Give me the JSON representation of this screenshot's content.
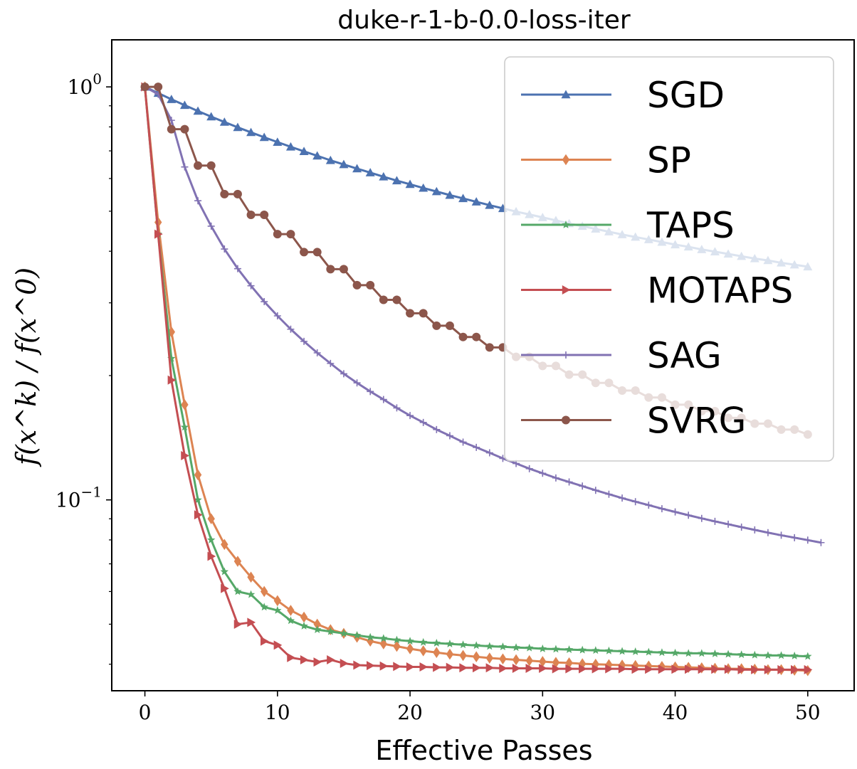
{
  "chart_data": {
    "type": "line",
    "title": "duke-r-1-b-0.0-loss-iter",
    "xlabel": "Effective Passes",
    "ylabel": "f(x^k) / f(x^0)",
    "xlim": [
      -2.5,
      53.5
    ],
    "ylim": [
      0.0345,
      1.3
    ],
    "yscale": "log",
    "grid": false,
    "legend_position": "top-right",
    "x_ticks": [
      0,
      10,
      20,
      30,
      40,
      50
    ],
    "x_tick_labels": [
      "0",
      "10",
      "20",
      "30",
      "40",
      "50"
    ],
    "y_ticks": [
      1.0,
      0.1
    ],
    "y_tick_labels": [
      "10^0",
      "10^-1"
    ],
    "series": [
      {
        "name": "SGD",
        "color": "#4c72b0",
        "marker": "triangle-up",
        "x": [
          0,
          1,
          2,
          3,
          4,
          5,
          6,
          7,
          8,
          9,
          10,
          11,
          12,
          13,
          14,
          15,
          16,
          17,
          18,
          19,
          20,
          21,
          22,
          23,
          24,
          25,
          26,
          27,
          28,
          29,
          30,
          31,
          32,
          33,
          34,
          35,
          36,
          37,
          38,
          39,
          40,
          41,
          42,
          43,
          44,
          45,
          46,
          47,
          48,
          49,
          50
        ],
        "y": [
          1.0,
          0.966,
          0.933,
          0.903,
          0.874,
          0.847,
          0.822,
          0.798,
          0.776,
          0.755,
          0.735,
          0.716,
          0.698,
          0.681,
          0.664,
          0.649,
          0.634,
          0.62,
          0.606,
          0.593,
          0.581,
          0.569,
          0.558,
          0.547,
          0.537,
          0.527,
          0.517,
          0.508,
          0.499,
          0.491,
          0.483,
          0.475,
          0.467,
          0.46,
          0.453,
          0.446,
          0.439,
          0.433,
          0.427,
          0.421,
          0.415,
          0.41,
          0.404,
          0.399,
          0.394,
          0.389,
          0.384,
          0.38,
          0.375,
          0.371,
          0.367
        ]
      },
      {
        "name": "SP",
        "color": "#dd8452",
        "marker": "diamond",
        "x": [
          0,
          1,
          2,
          3,
          4,
          5,
          6,
          7,
          8,
          9,
          10,
          11,
          12,
          13,
          14,
          15,
          16,
          17,
          18,
          19,
          20,
          21,
          22,
          23,
          24,
          25,
          26,
          27,
          28,
          29,
          30,
          31,
          32,
          33,
          34,
          35,
          36,
          37,
          38,
          39,
          40,
          41,
          42,
          43,
          44,
          45,
          46,
          47,
          48,
          49,
          50
        ],
        "y": [
          1.0,
          0.47,
          0.255,
          0.17,
          0.115,
          0.09,
          0.078,
          0.071,
          0.065,
          0.06,
          0.057,
          0.054,
          0.052,
          0.05,
          0.0485,
          0.0475,
          0.0465,
          0.0455,
          0.0448,
          0.0442,
          0.0436,
          0.0431,
          0.0427,
          0.0423,
          0.042,
          0.0417,
          0.0414,
          0.0412,
          0.041,
          0.0408,
          0.0406,
          0.0404,
          0.0403,
          0.0401,
          0.04,
          0.0399,
          0.0398,
          0.0397,
          0.0396,
          0.0395,
          0.0394,
          0.0393,
          0.0392,
          0.0391,
          0.039,
          0.039,
          0.0389,
          0.0388,
          0.0388,
          0.0387,
          0.0386
        ]
      },
      {
        "name": "TAPS",
        "color": "#55a868",
        "marker": "star",
        "x": [
          0,
          1,
          2,
          3,
          4,
          5,
          6,
          7,
          8,
          9,
          10,
          11,
          12,
          13,
          14,
          15,
          16,
          17,
          18,
          19,
          20,
          21,
          22,
          23,
          24,
          25,
          26,
          27,
          28,
          29,
          30,
          31,
          32,
          33,
          34,
          35,
          36,
          37,
          38,
          39,
          40,
          41,
          42,
          43,
          44,
          45,
          46,
          47,
          48,
          49,
          50
        ],
        "y": [
          1.0,
          0.44,
          0.22,
          0.15,
          0.1,
          0.08,
          0.067,
          0.06,
          0.059,
          0.055,
          0.054,
          0.051,
          0.0495,
          0.0485,
          0.048,
          0.0475,
          0.047,
          0.0465,
          0.0462,
          0.0458,
          0.0455,
          0.0452,
          0.045,
          0.0448,
          0.0446,
          0.0444,
          0.0442,
          0.0441,
          0.0439,
          0.0438,
          0.0436,
          0.0435,
          0.0434,
          0.0433,
          0.0432,
          0.0431,
          0.043,
          0.0429,
          0.0428,
          0.0427,
          0.0426,
          0.0425,
          0.0425,
          0.0424,
          0.0423,
          0.0422,
          0.0421,
          0.042,
          0.042,
          0.0419,
          0.0418
        ]
      },
      {
        "name": "MOTAPS",
        "color": "#c44e52",
        "marker": "triangle-right",
        "x": [
          0,
          1,
          2,
          3,
          4,
          5,
          6,
          7,
          8,
          9,
          10,
          11,
          12,
          13,
          14,
          15,
          16,
          17,
          18,
          19,
          20,
          21,
          22,
          23,
          24,
          25,
          26,
          27,
          28,
          29,
          30,
          31,
          32,
          33,
          34,
          35,
          36,
          37,
          38,
          39,
          40,
          41,
          42,
          43,
          44,
          45,
          46,
          47,
          48,
          49,
          50
        ],
        "y": [
          1.0,
          0.44,
          0.195,
          0.128,
          0.092,
          0.073,
          0.061,
          0.05,
          0.0505,
          0.0455,
          0.0445,
          0.0415,
          0.041,
          0.0405,
          0.041,
          0.0402,
          0.0398,
          0.0397,
          0.0396,
          0.0395,
          0.0394,
          0.0394,
          0.0393,
          0.0393,
          0.0392,
          0.0392,
          0.0392,
          0.0391,
          0.0391,
          0.0391,
          0.0391,
          0.039,
          0.039,
          0.039,
          0.039,
          0.039,
          0.039,
          0.0389,
          0.0389,
          0.0389,
          0.0389,
          0.0389,
          0.0389,
          0.0389,
          0.0389,
          0.0388,
          0.0388,
          0.0388,
          0.0388,
          0.0388,
          0.0388
        ]
      },
      {
        "name": "SAG",
        "color": "#8172b3",
        "marker": "plus",
        "x": [
          0,
          1,
          2,
          3,
          4,
          5,
          6,
          7,
          8,
          9,
          10,
          11,
          12,
          13,
          14,
          15,
          16,
          17,
          18,
          19,
          20,
          21,
          22,
          23,
          24,
          25,
          26,
          27,
          28,
          29,
          30,
          31,
          32,
          33,
          34,
          35,
          36,
          37,
          38,
          39,
          40,
          41,
          42,
          43,
          44,
          45,
          46,
          47,
          48,
          49,
          50,
          51
        ],
        "y": [
          1.0,
          0.96,
          0.83,
          0.64,
          0.53,
          0.46,
          0.405,
          0.363,
          0.33,
          0.302,
          0.279,
          0.259,
          0.242,
          0.227,
          0.214,
          0.202,
          0.192,
          0.183,
          0.175,
          0.167,
          0.16,
          0.154,
          0.148,
          0.143,
          0.138,
          0.134,
          0.13,
          0.126,
          0.1225,
          0.119,
          0.116,
          0.113,
          0.1105,
          0.108,
          0.1055,
          0.1032,
          0.101,
          0.099,
          0.0971,
          0.0952,
          0.0935,
          0.0918,
          0.0902,
          0.0887,
          0.0873,
          0.0859,
          0.0846,
          0.0833,
          0.0821,
          0.081,
          0.0799,
          0.0788
        ]
      },
      {
        "name": "SVRG",
        "color": "#8c564b",
        "marker": "circle",
        "x": [
          0,
          1,
          2,
          3,
          4,
          5,
          6,
          7,
          8,
          9,
          10,
          11,
          12,
          13,
          14,
          15,
          16,
          17,
          18,
          19,
          20,
          21,
          22,
          23,
          24,
          25,
          26,
          27,
          28,
          29,
          30,
          31,
          32,
          33,
          34,
          35,
          36,
          37,
          38,
          39,
          40,
          41,
          42,
          43,
          44,
          45,
          46,
          47,
          48,
          49,
          50
        ],
        "y": [
          1.0,
          1.0,
          0.79,
          0.79,
          0.645,
          0.645,
          0.55,
          0.55,
          0.49,
          0.49,
          0.44,
          0.44,
          0.398,
          0.398,
          0.362,
          0.362,
          0.331,
          0.331,
          0.305,
          0.305,
          0.283,
          0.283,
          0.264,
          0.264,
          0.248,
          0.248,
          0.234,
          0.234,
          0.222,
          0.222,
          0.211,
          0.211,
          0.201,
          0.201,
          0.192,
          0.192,
          0.184,
          0.184,
          0.177,
          0.177,
          0.17,
          0.17,
          0.164,
          0.164,
          0.158,
          0.158,
          0.153,
          0.153,
          0.148,
          0.148,
          0.144
        ]
      }
    ]
  }
}
